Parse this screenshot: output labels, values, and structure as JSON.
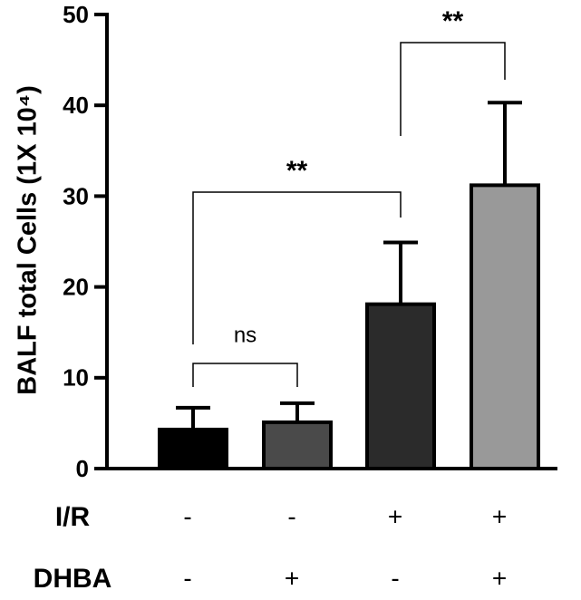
{
  "chart_data": {
    "type": "bar",
    "ylabel": "BALF total Cells (1X 10⁴)",
    "categories": [
      null,
      null,
      null,
      null
    ],
    "values": [
      4.3,
      5.1,
      18.1,
      31.2
    ],
    "errors": [
      2.4,
      2.1,
      6.8,
      9.1
    ],
    "colors": [
      "#000000",
      "#4a4a4a",
      "#2b2b2b",
      "#999999"
    ],
    "ylim": [
      0,
      50
    ],
    "yticks": [
      0,
      10,
      20,
      30,
      40,
      50
    ],
    "annotations": [
      {
        "label": "ns",
        "from": 0,
        "to": 1
      },
      {
        "label": "**",
        "from": 0,
        "to": 2
      },
      {
        "label": "**",
        "from": 2,
        "to": 3
      }
    ],
    "conditions": [
      {
        "name": "I/R",
        "values": [
          "-",
          "-",
          "+",
          "+"
        ]
      },
      {
        "name": "DHBA",
        "values": [
          "-",
          "+",
          "-",
          "+"
        ]
      }
    ]
  }
}
